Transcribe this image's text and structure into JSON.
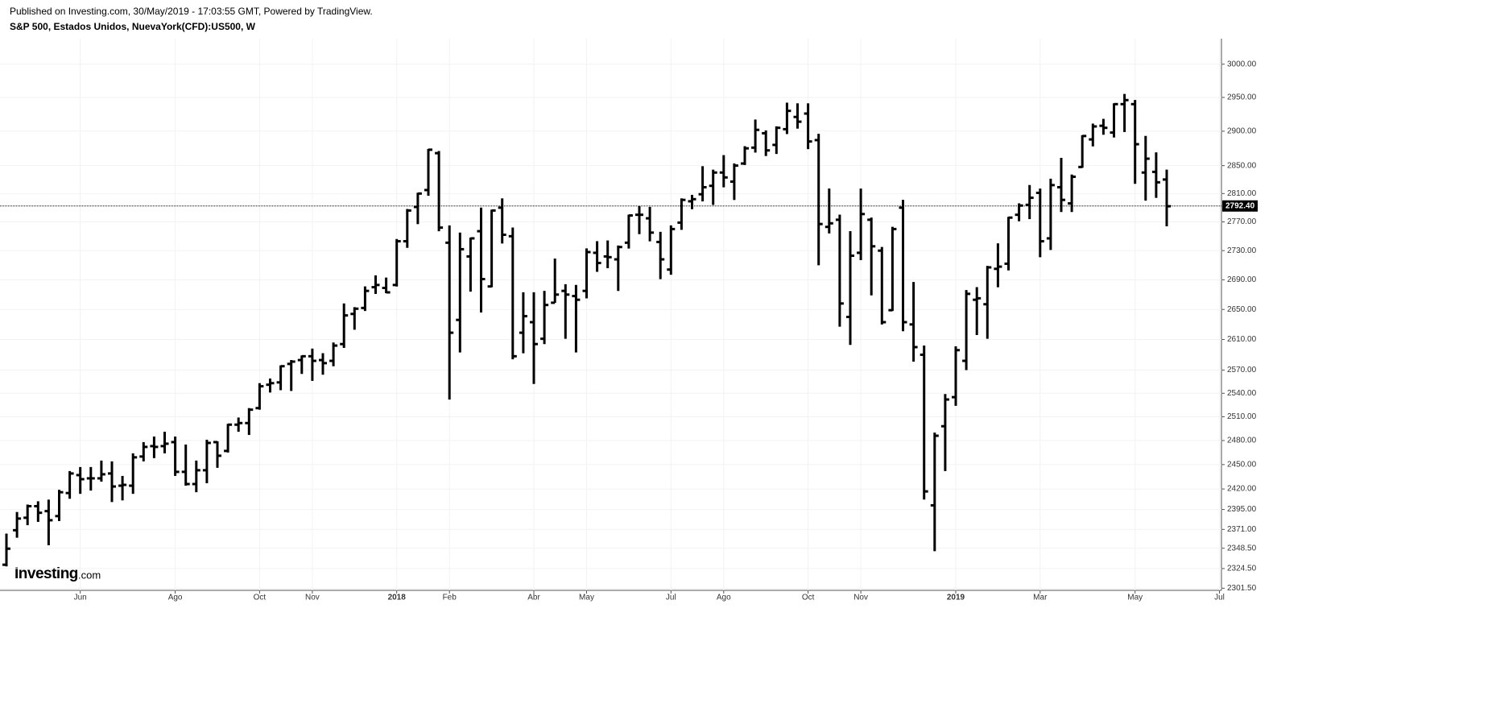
{
  "header": {
    "published": "Published on Investing.com, 30/May/2019 - 17:03:55 GMT, Powered by TradingView.",
    "symbol": "S&P 500, Estados Unidos, NuevaYork(CFD):US500, W"
  },
  "logo": {
    "name": "Investing",
    "suffix": ".com"
  },
  "chart_data": {
    "type": "ohlc",
    "color": "#000000",
    "log_scale": true,
    "grid": true,
    "ylim": [
      2299,
      3039
    ],
    "yticks": [
      {
        "value": 2301.5,
        "label": "2301.50"
      },
      {
        "value": 2324.5,
        "label": "2324.50"
      },
      {
        "value": 2348.5,
        "label": "2348.50"
      },
      {
        "value": 2371,
        "label": "2371.00"
      },
      {
        "value": 2395,
        "label": "2395.00"
      },
      {
        "value": 2420,
        "label": "2420.00"
      },
      {
        "value": 2450,
        "label": "2450.00"
      },
      {
        "value": 2480,
        "label": "2480.00"
      },
      {
        "value": 2510,
        "label": "2510.00"
      },
      {
        "value": 2540,
        "label": "2540.00"
      },
      {
        "value": 2570,
        "label": "2570.00"
      },
      {
        "value": 2610,
        "label": "2610.00"
      },
      {
        "value": 2650,
        "label": "2650.00"
      },
      {
        "value": 2690,
        "label": "2690.00"
      },
      {
        "value": 2730,
        "label": "2730.00"
      },
      {
        "value": 2770,
        "label": "2770.00"
      },
      {
        "value": 2810,
        "label": "2810.00"
      },
      {
        "value": 2850,
        "label": "2850.00"
      },
      {
        "value": 2900,
        "label": "2900.00"
      },
      {
        "value": 2950,
        "label": "2950.00"
      },
      {
        "value": 3000,
        "label": "3000.00"
      }
    ],
    "current_price": {
      "value": 2792.4,
      "label": "2792.40"
    },
    "categories": [
      null,
      null,
      null,
      null,
      null,
      null,
      null,
      "Jun",
      null,
      null,
      null,
      null,
      null,
      null,
      null,
      null,
      "Ago",
      null,
      null,
      null,
      null,
      null,
      null,
      null,
      "Oct",
      null,
      null,
      null,
      null,
      "Nov",
      null,
      null,
      null,
      null,
      null,
      null,
      null,
      "2018",
      null,
      null,
      null,
      null,
      "Feb",
      null,
      null,
      null,
      null,
      null,
      null,
      null,
      "Abr",
      null,
      null,
      null,
      null,
      "May",
      null,
      null,
      null,
      null,
      null,
      null,
      null,
      "Jul",
      null,
      null,
      null,
      null,
      "Ago",
      null,
      null,
      null,
      null,
      null,
      null,
      null,
      "Oct",
      null,
      null,
      null,
      null,
      "Nov",
      null,
      null,
      null,
      null,
      null,
      null,
      null,
      null,
      "2019",
      null,
      null,
      null,
      null,
      null,
      null,
      null,
      "Mar",
      null,
      null,
      null,
      null,
      null,
      null,
      null,
      null,
      "May",
      null,
      null,
      null,
      null,
      null,
      null,
      null,
      "Jul"
    ],
    "ohlc": [
      [
        2329,
        2365,
        2328,
        2348
      ],
      [
        2370,
        2391,
        2362,
        2384
      ],
      [
        2385,
        2400,
        2377,
        2399
      ],
      [
        2399,
        2404,
        2381,
        2391
      ],
      [
        2393,
        2406,
        2353,
        2382
      ],
      [
        2387,
        2418,
        2382,
        2416
      ],
      [
        2415,
        2441,
        2409,
        2439
      ],
      [
        2437,
        2446,
        2415,
        2432
      ],
      [
        2433,
        2446,
        2419,
        2433
      ],
      [
        2433,
        2454,
        2430,
        2438
      ],
      [
        2439,
        2453,
        2405,
        2423
      ],
      [
        2424,
        2435,
        2407,
        2425
      ],
      [
        2424,
        2463,
        2415,
        2459
      ],
      [
        2460,
        2477,
        2455,
        2472
      ],
      [
        2473,
        2484,
        2459,
        2472
      ],
      [
        2473,
        2490,
        2465,
        2476
      ],
      [
        2478,
        2484,
        2437,
        2441
      ],
      [
        2441,
        2474,
        2425,
        2426
      ],
      [
        2426,
        2454,
        2417,
        2443
      ],
      [
        2443,
        2480,
        2428,
        2477
      ],
      [
        2478,
        2478,
        2447,
        2461
      ],
      [
        2467,
        2500,
        2466,
        2500
      ],
      [
        2500,
        2508,
        2492,
        2502
      ],
      [
        2502,
        2520,
        2488,
        2519
      ],
      [
        2521,
        2552,
        2520,
        2549
      ],
      [
        2551,
        2558,
        2542,
        2553
      ],
      [
        2554,
        2575,
        2545,
        2575
      ],
      [
        2578,
        2582,
        2544,
        2581
      ],
      [
        2583,
        2588,
        2566,
        2588
      ],
      [
        2588,
        2597,
        2557,
        2582
      ],
      [
        2583,
        2591,
        2565,
        2579
      ],
      [
        2582,
        2605,
        2576,
        2602
      ],
      [
        2604,
        2657,
        2600,
        2642
      ],
      [
        2644,
        2652,
        2624,
        2651
      ],
      [
        2652,
        2680,
        2649,
        2675
      ],
      [
        2680,
        2695,
        2672,
        2683
      ],
      [
        2679,
        2692,
        2673,
        2673
      ],
      [
        2683,
        2745,
        2682,
        2743
      ],
      [
        2743,
        2787,
        2735,
        2786
      ],
      [
        2791,
        2810,
        2768,
        2810
      ],
      [
        2815,
        2873,
        2808,
        2873
      ],
      [
        2868,
        2870,
        2758,
        2762
      ],
      [
        2741,
        2764,
        2533,
        2619
      ],
      [
        2636,
        2754,
        2594,
        2732
      ],
      [
        2722,
        2747,
        2675,
        2747
      ],
      [
        2757,
        2789,
        2647,
        2691
      ],
      [
        2681,
        2786,
        2681,
        2786
      ],
      [
        2790,
        2802,
        2741,
        2752
      ],
      [
        2750,
        2761,
        2585,
        2588
      ],
      [
        2619,
        2672,
        2593,
        2641
      ],
      [
        2633,
        2672,
        2553,
        2604
      ],
      [
        2611,
        2674,
        2605,
        2656
      ],
      [
        2659,
        2718,
        2660,
        2670
      ],
      [
        2675,
        2683,
        2612,
        2670
      ],
      [
        2668,
        2682,
        2594,
        2663
      ],
      [
        2675,
        2732,
        2666,
        2728
      ],
      [
        2727,
        2742,
        2702,
        2713
      ],
      [
        2722,
        2743,
        2707,
        2721
      ],
      [
        2718,
        2736,
        2676,
        2735
      ],
      [
        2741,
        2779,
        2734,
        2779
      ],
      [
        2780,
        2791,
        2754,
        2780
      ],
      [
        2775,
        2790,
        2744,
        2755
      ],
      [
        2742,
        2755,
        2692,
        2718
      ],
      [
        2704,
        2764,
        2698,
        2760
      ],
      [
        2769,
        2802,
        2760,
        2801
      ],
      [
        2799,
        2807,
        2789,
        2802
      ],
      [
        2809,
        2848,
        2800,
        2819
      ],
      [
        2821,
        2843,
        2795,
        2840
      ],
      [
        2840,
        2864,
        2820,
        2833
      ],
      [
        2827,
        2852,
        2802,
        2850
      ],
      [
        2853,
        2877,
        2852,
        2875
      ],
      [
        2876,
        2916,
        2870,
        2902
      ],
      [
        2897,
        2900,
        2865,
        2872
      ],
      [
        2880,
        2906,
        2868,
        2905
      ],
      [
        2903,
        2941,
        2897,
        2930
      ],
      [
        2921,
        2940,
        2905,
        2914
      ],
      [
        2926,
        2940,
        2875,
        2885
      ],
      [
        2887,
        2895,
        2711,
        2767
      ],
      [
        2763,
        2816,
        2755,
        2768
      ],
      [
        2773,
        2779,
        2628,
        2658
      ],
      [
        2640,
        2756,
        2604,
        2723
      ],
      [
        2727,
        2816,
        2718,
        2781
      ],
      [
        2773,
        2775,
        2670,
        2736
      ],
      [
        2730,
        2734,
        2631,
        2633
      ],
      [
        2649,
        2762,
        2649,
        2760
      ],
      [
        2790,
        2800,
        2622,
        2633
      ],
      [
        2630,
        2686,
        2582,
        2600
      ],
      [
        2590,
        2601,
        2408,
        2417
      ],
      [
        2400,
        2489,
        2346,
        2486
      ],
      [
        2498,
        2538,
        2443,
        2532
      ],
      [
        2535,
        2600,
        2525,
        2596
      ],
      [
        2582,
        2675,
        2571,
        2671
      ],
      [
        2663,
        2679,
        2617,
        2665
      ],
      [
        2657,
        2708,
        2612,
        2707
      ],
      [
        2705,
        2739,
        2681,
        2708
      ],
      [
        2712,
        2776,
        2704,
        2776
      ],
      [
        2780,
        2795,
        2772,
        2793
      ],
      [
        2794,
        2821,
        2775,
        2804
      ],
      [
        2811,
        2816,
        2722,
        2743
      ],
      [
        2747,
        2830,
        2732,
        2822
      ],
      [
        2819,
        2860,
        2785,
        2801
      ],
      [
        2796,
        2836,
        2785,
        2834
      ],
      [
        2848,
        2893,
        2848,
        2893
      ],
      [
        2888,
        2910,
        2879,
        2907
      ],
      [
        2908,
        2917,
        2896,
        2905
      ],
      [
        2898,
        2940,
        2892,
        2940
      ],
      [
        2940,
        2954,
        2900,
        2946
      ],
      [
        2940,
        2945,
        2825,
        2881
      ],
      [
        2840,
        2892,
        2801,
        2860
      ],
      [
        2841,
        2868,
        2805,
        2826
      ],
      [
        2830,
        2843,
        2765,
        2792
      ],
      null,
      null,
      null,
      null,
      null
    ]
  }
}
